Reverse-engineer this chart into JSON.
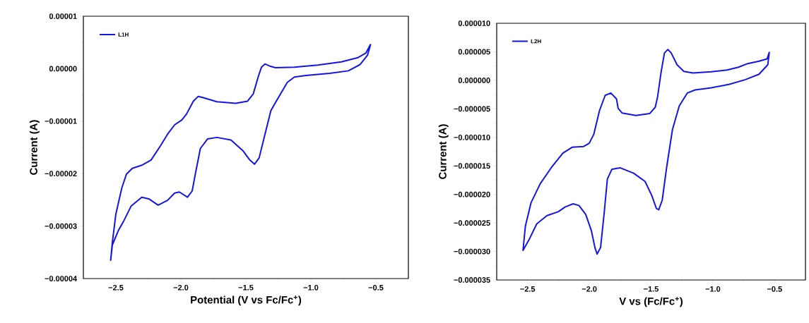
{
  "chart_data": [
    {
      "type": "line",
      "xlabel": "Potential (V vs Fc/Fc$^{+}$)",
      "ylabel": "Current (A)",
      "xlim": [
        -2.75,
        -0.25
      ],
      "ylim": [
        -4e-05,
        1e-05
      ],
      "xticks": [
        {
          "value": -2.5,
          "label": "−2.5"
        },
        {
          "value": -2.0,
          "label": "−2.0"
        },
        {
          "value": -1.5,
          "label": "−1.5"
        },
        {
          "value": -1.0,
          "label": "−1.0"
        },
        {
          "value": -0.5,
          "label": "−0.5"
        }
      ],
      "yticks": [
        {
          "value": -4e-05,
          "label": "−0.00004"
        },
        {
          "value": -3e-05,
          "label": "−0.00003"
        },
        {
          "value": -2e-05,
          "label": "−0.00002"
        },
        {
          "value": -1e-05,
          "label": "−0.00001"
        },
        {
          "value": 0,
          "label": "0.00000"
        },
        {
          "value": 1e-05,
          "label": "0.00001"
        }
      ],
      "legend": "top left",
      "series": [
        {
          "name": "L1H",
          "color": "#1414e6",
          "x": [
            -0.54,
            -0.576,
            -0.639,
            -0.766,
            -0.946,
            -1.127,
            -1.271,
            -1.317,
            -1.353,
            -1.38,
            -1.407,
            -1.443,
            -1.488,
            -1.579,
            -1.723,
            -1.832,
            -1.868,
            -1.904,
            -1.958,
            -1.994,
            -2.048,
            -2.103,
            -2.157,
            -2.229,
            -2.301,
            -2.374,
            -2.419,
            -2.455,
            -2.5,
            -2.527,
            -2.54,
            -2.527,
            -2.482,
            -2.437,
            -2.383,
            -2.301,
            -2.247,
            -2.175,
            -2.103,
            -2.048,
            -2.012,
            -1.949,
            -1.913,
            -1.886,
            -1.85,
            -1.795,
            -1.723,
            -1.615,
            -1.524,
            -1.47,
            -1.434,
            -1.398,
            -1.362,
            -1.308,
            -1.271,
            -1.181,
            -1.127,
            -1.037,
            -0.856,
            -0.711,
            -0.621,
            -0.564,
            -0.541
          ],
          "values": [
            4.7e-06,
            3e-06,
            2.1e-06,
            1.3e-06,
            7e-07,
            3e-07,
            2e-07,
            5e-07,
            9e-07,
            3e-07,
            -1.7e-06,
            -4.8e-06,
            -6.2e-06,
            -6.6e-06,
            -6.3e-06,
            -5.5e-06,
            -5.3e-06,
            -6.2e-06,
            -8.7e-06,
            -9.8e-06,
            -1.07e-05,
            -1.25e-05,
            -1.47e-05,
            -1.74e-05,
            -1.84e-05,
            -1.9e-05,
            -2.01e-05,
            -2.28e-05,
            -2.77e-05,
            -3.31e-05,
            -3.65e-05,
            -3.36e-05,
            -3.09e-05,
            -2.89e-05,
            -2.62e-05,
            -2.45e-05,
            -2.48e-05,
            -2.6e-05,
            -2.51e-05,
            -2.37e-05,
            -2.35e-05,
            -2.45e-05,
            -2.33e-05,
            -1.97e-05,
            -1.52e-05,
            -1.34e-05,
            -1.31e-05,
            -1.36e-05,
            -1.56e-05,
            -1.74e-05,
            -1.82e-05,
            -1.7e-05,
            -1.34e-05,
            -8e-06,
            -6.4e-06,
            -2.6e-06,
            -1.6e-06,
            -1.3e-06,
            -9e-07,
            -4e-07,
            8e-07,
            2.6e-06,
            4.6e-06
          ]
        }
      ]
    },
    {
      "type": "line",
      "xlabel": "V vs (Fc/Fc$^{+}$)",
      "ylabel": "Current (A)",
      "xlim": [
        -2.75,
        -0.25
      ],
      "ylim": [
        -3.5e-05,
        1e-05
      ],
      "xticks": [
        {
          "value": -2.5,
          "label": "−2.5"
        },
        {
          "value": -2.0,
          "label": "−2.0"
        },
        {
          "value": -1.5,
          "label": "−1.5"
        },
        {
          "value": -1.0,
          "label": "−1.0"
        },
        {
          "value": -0.5,
          "label": "−0.5"
        }
      ],
      "yticks": [
        {
          "value": -3.5e-05,
          "label": "−0.000035"
        },
        {
          "value": -3e-05,
          "label": "−0.000030"
        },
        {
          "value": -2.5e-05,
          "label": "−0.000025"
        },
        {
          "value": -2e-05,
          "label": "−0.000020"
        },
        {
          "value": -1.5e-05,
          "label": "−0.000015"
        },
        {
          "value": -1e-05,
          "label": "−0.000010"
        },
        {
          "value": -5e-06,
          "label": "−0.000005"
        },
        {
          "value": 0,
          "label": "0.000000"
        },
        {
          "value": 5e-06,
          "label": "0.000005"
        },
        {
          "value": 1e-05,
          "label": "0.000010"
        }
      ],
      "legend": "top left",
      "series": [
        {
          "name": "L2H",
          "color": "#1414e6",
          "x": [
            -0.542,
            -0.561,
            -0.626,
            -0.718,
            -0.792,
            -0.884,
            -1.013,
            -1.161,
            -1.235,
            -1.29,
            -1.337,
            -1.364,
            -1.392,
            -1.42,
            -1.447,
            -1.466,
            -1.512,
            -1.623,
            -1.734,
            -1.767,
            -1.78,
            -1.826,
            -1.872,
            -1.918,
            -1.964,
            -2.001,
            -2.048,
            -2.14,
            -2.214,
            -2.306,
            -2.398,
            -2.472,
            -2.518,
            -2.537,
            -2.491,
            -2.426,
            -2.343,
            -2.251,
            -2.195,
            -2.131,
            -2.084,
            -2.029,
            -1.983,
            -1.955,
            -1.937,
            -1.909,
            -1.881,
            -1.854,
            -1.817,
            -1.752,
            -1.641,
            -1.549,
            -1.494,
            -1.457,
            -1.438,
            -1.41,
            -1.374,
            -1.327,
            -1.272,
            -1.207,
            -1.143,
            -1.013,
            -0.866,
            -0.736,
            -0.626,
            -0.555,
            -0.543
          ],
          "values": [
            5e-06,
            3.76e-06,
            3.35e-06,
            2.93e-06,
            2.31e-06,
            1.82e-06,
            1.49e-06,
            1.28e-06,
            1.57e-06,
            2.73e-06,
            4.79e-06,
            5.41e-06,
            4.79e-06,
            1.28e-06,
            -2.85e-06,
            -4.71e-06,
            -5.83e-06,
            -6.16e-06,
            -5.74e-06,
            -4.92e-06,
            -3.26e-06,
            -2.23e-06,
            -2.64e-06,
            -5.33e-06,
            -9.46e-06,
            -1.103e-05,
            -1.161e-05,
            -1.174e-05,
            -1.277e-05,
            -1.525e-05,
            -1.814e-05,
            -2.145e-05,
            -2.558e-05,
            -2.98e-05,
            -2.806e-05,
            -2.517e-05,
            -2.372e-05,
            -2.302e-05,
            -2.219e-05,
            -2.165e-05,
            -2.194e-05,
            -2.351e-05,
            -2.64e-05,
            -2.93e-05,
            -3.045e-05,
            -2.93e-05,
            -2.351e-05,
            -1.731e-05,
            -1.558e-05,
            -1.533e-05,
            -1.628e-05,
            -1.773e-05,
            -2.021e-05,
            -2.248e-05,
            -2.269e-05,
            -2.103e-05,
            -1.525e-05,
            -8.64e-06,
            -4.5e-06,
            -2.23e-06,
            -1.69e-06,
            -1.32e-06,
            -7e-07,
            1.2e-07,
            1.07e-06,
            2.73e-06,
            4.9e-06
          ]
        }
      ]
    }
  ]
}
